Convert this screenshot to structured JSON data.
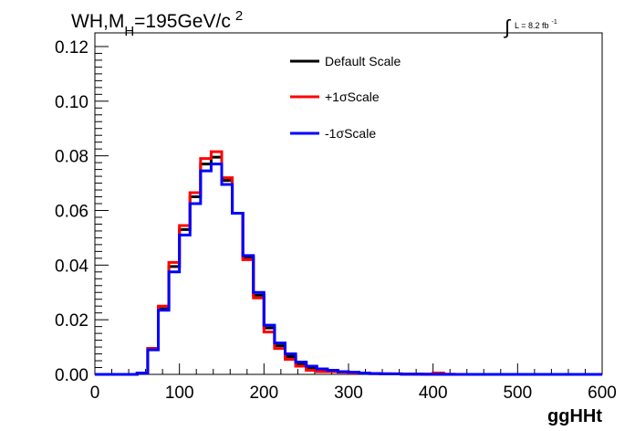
{
  "title": {
    "prefix": "WH,M",
    "subscript": "H",
    "main": "=195GeV/c",
    "superscript": "2"
  },
  "lumi": {
    "integral_symbol": "∫",
    "text": "L = 8.2 fb",
    "superscript": "-1"
  },
  "chart_data": {
    "type": "line",
    "step": true,
    "xlabel": "ggHHt",
    "ylabel": "",
    "xlim": [
      0,
      600
    ],
    "ylim": [
      0,
      0.125
    ],
    "x_ticks": [
      0,
      100,
      200,
      300,
      400,
      500,
      600
    ],
    "x_tick_labels": [
      "0",
      "100",
      "200",
      "300",
      "400",
      "500",
      "600"
    ],
    "y_ticks": [
      0,
      0.02,
      0.04,
      0.06,
      0.08,
      0.1,
      0.12
    ],
    "y_tick_labels": [
      "0.00",
      "0.02",
      "0.04",
      "0.06",
      "0.08",
      "0.10",
      "0.12"
    ],
    "bin_edges": [
      0,
      12.5,
      25,
      37.5,
      50,
      62.5,
      75,
      87.5,
      100,
      112.5,
      125,
      137.5,
      150,
      162.5,
      175,
      187.5,
      200,
      212.5,
      225,
      237.5,
      250,
      262.5,
      275,
      287.5,
      300,
      312.5,
      325,
      337.5,
      350,
      362.5,
      375,
      387.5,
      400,
      412.5,
      425,
      437.5,
      450,
      462.5,
      475,
      487.5,
      500,
      512.5,
      525,
      537.5,
      550,
      562.5,
      575,
      587.5,
      600
    ],
    "legend_position": "top-center",
    "series": [
      {
        "name": "Default Scale",
        "color": "#000000",
        "values": [
          0,
          0,
          0,
          0,
          0.0005,
          0.0095,
          0.024,
          0.0395,
          0.053,
          0.065,
          0.077,
          0.0795,
          0.071,
          0.059,
          0.043,
          0.029,
          0.017,
          0.0105,
          0.0065,
          0.004,
          0.0025,
          0.0015,
          0.0012,
          0.001,
          0.0006,
          0.0004,
          0.0003,
          0.0002,
          0.00015,
          0.0001,
          0.0001,
          5e-05,
          5e-05,
          0,
          0,
          0,
          0,
          0,
          0,
          0,
          0,
          0,
          0,
          0,
          0,
          0,
          0,
          0
        ]
      },
      {
        "name": "+1σScale",
        "color": "#ff0000",
        "values": [
          0,
          0,
          0,
          0,
          0.0005,
          0.0095,
          0.025,
          0.041,
          0.0545,
          0.0665,
          0.079,
          0.0815,
          0.072,
          0.059,
          0.042,
          0.028,
          0.0155,
          0.0095,
          0.0055,
          0.003,
          0.0015,
          0.001,
          0.001,
          0.0008,
          0.0005,
          0.0005,
          0.0003,
          0.0002,
          0.0002,
          0.0001,
          0.0001,
          0.0001,
          0.0005,
          0.0001,
          0,
          0,
          0,
          0,
          0,
          0,
          0,
          0,
          0,
          0,
          0,
          0,
          0,
          0
        ]
      },
      {
        "name": "-1σScale",
        "color": "#0000ff",
        "values": [
          0,
          0,
          0,
          0,
          0.0005,
          0.009,
          0.0235,
          0.0375,
          0.051,
          0.0625,
          0.0745,
          0.077,
          0.0695,
          0.059,
          0.0435,
          0.03,
          0.018,
          0.0115,
          0.0075,
          0.0045,
          0.003,
          0.002,
          0.0015,
          0.001,
          0.0008,
          0.0005,
          0.0003,
          0.0002,
          0.0002,
          0.0001,
          0.0001,
          5e-05,
          5e-05,
          0,
          0,
          0,
          0,
          0,
          0,
          0,
          0,
          0,
          0,
          0,
          0,
          0,
          0,
          0
        ]
      }
    ]
  }
}
